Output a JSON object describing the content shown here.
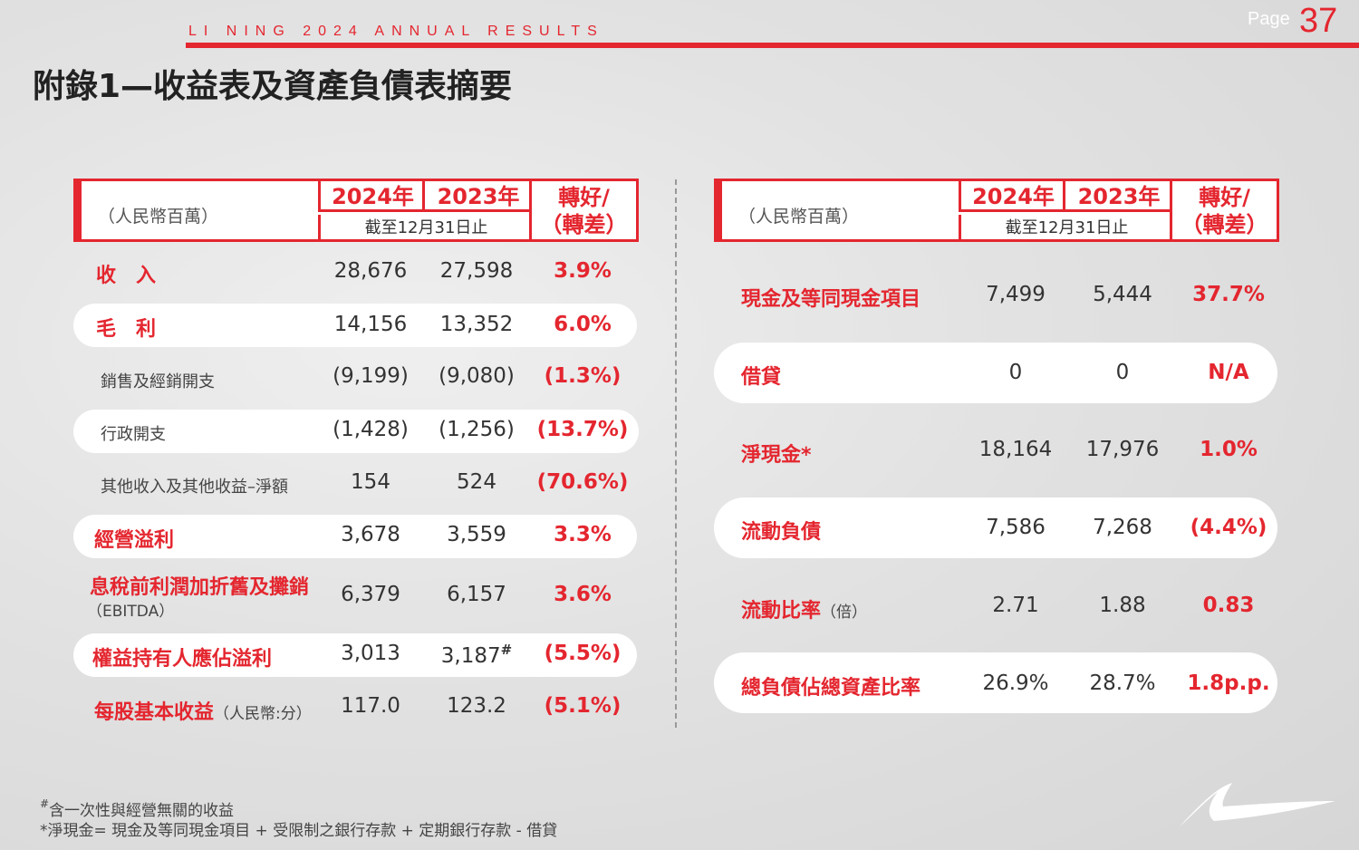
{
  "header": {
    "running_title": "LI NING 2024 ANNUAL RESULTS",
    "page_label": "Page",
    "page_number": "37"
  },
  "title": "附錄1—收益表及資產負債表摘要",
  "left_table": {
    "unit": "（人民幣百萬）",
    "year1": "2024年",
    "year2": "2023年",
    "period": "截至12月31日止",
    "change": [
      "轉好/",
      "（轉差）"
    ],
    "rows": [
      {
        "label": "收　入",
        "v2024": "28,676",
        "v2023": "27,598",
        "chg": "3.9%"
      },
      {
        "label": "毛　利",
        "v2024": "14,156",
        "v2023": "13,352",
        "chg": "6.0%"
      },
      {
        "label": "銷售及經銷開支",
        "v2024": "(9,199)",
        "v2023": "(9,080)",
        "chg": "(1.3%)"
      },
      {
        "label": "行政開支",
        "v2024": "(1,428)",
        "v2023": "(1,256)",
        "chg": "(13.7%)"
      },
      {
        "label": "其他收入及其他收益–淨額",
        "v2024": "154",
        "v2023": "524",
        "chg": "(70.6%)"
      },
      {
        "label": "經營溢利",
        "v2024": "3,678",
        "v2023": "3,559",
        "chg": "3.3%"
      },
      {
        "label": "息稅前利潤加折舊及攤銷",
        "sublabel": "（EBITDA）",
        "v2024": "6,379",
        "v2023": "6,157",
        "chg": "3.6%"
      },
      {
        "label": "權益持有人應佔溢利",
        "v2024": "3,013",
        "v2023": "3,187",
        "v2023_mark": "#",
        "chg": "(5.5%)"
      },
      {
        "label": "每股基本收益",
        "sublabel": "（人民幣:分）",
        "v2024": "117.0",
        "v2023": "123.2",
        "chg": "(5.1%)"
      }
    ]
  },
  "right_table": {
    "unit": "（人民幣百萬）",
    "year1": "2024年",
    "year2": "2023年",
    "period": "截至12月31日止",
    "change": [
      "轉好/",
      "（轉差）"
    ],
    "rows": [
      {
        "label": "現金及等同現金項目",
        "v2024": "7,499",
        "v2023": "5,444",
        "chg": "37.7%"
      },
      {
        "label": "借貸",
        "v2024": "0",
        "v2023": "0",
        "chg": "N/A"
      },
      {
        "label": "淨現金*",
        "v2024": "18,164",
        "v2023": "17,976",
        "chg": "1.0%"
      },
      {
        "label": "流動負債",
        "v2024": "7,586",
        "v2023": "7,268",
        "chg": "(4.4%)"
      },
      {
        "label": "流動比率",
        "sublabel": "（倍）",
        "v2024": "2.71",
        "v2023": "1.88",
        "chg": "0.83"
      },
      {
        "label": "總負債佔總資產比率",
        "v2024": "26.9%",
        "v2023": "28.7%",
        "chg": "1.8p.p."
      }
    ]
  },
  "footnotes": {
    "f1_mark": "#",
    "f1": "含一次性與經營無關的收益",
    "f2": "*淨現金= 現金及等同現金項目 + 受限制之銀行存款 + 定期銀行存款 - 借貸"
  },
  "colors": {
    "accent": "#e4262f",
    "background": "#e0e0e0",
    "pill": "#ffffff"
  },
  "icons": {
    "logo": "li-ning-swoosh-logo"
  }
}
